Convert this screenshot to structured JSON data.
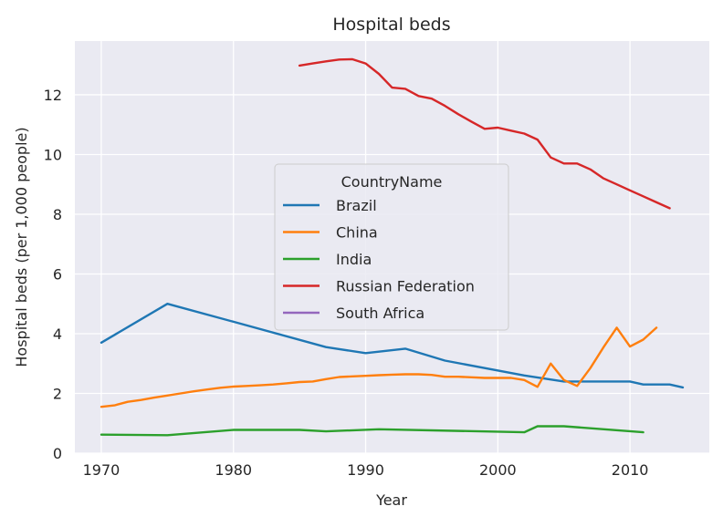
{
  "chart_data": {
    "type": "line",
    "title": "Hospital beds",
    "xlabel": "Year",
    "ylabel": "Hospital beds (per 1,000 people)",
    "xlim": [
      1968,
      2016
    ],
    "ylim": [
      0,
      13.8
    ],
    "xticks": [
      1970,
      1980,
      1990,
      2000,
      2010
    ],
    "yticks": [
      0,
      2,
      4,
      6,
      8,
      10,
      12
    ],
    "grid": true,
    "legend": {
      "title": "CountryName",
      "placement": "center"
    },
    "series": [
      {
        "name": "Brazil",
        "color": "#1f77b4",
        "x": [
          1970,
          1975,
          1980,
          1987,
          1990,
          1993,
          1996,
          2002,
          2005,
          2010,
          2011,
          2013,
          2014
        ],
        "y": [
          3.7,
          5.0,
          4.4,
          3.55,
          3.35,
          3.5,
          3.1,
          2.6,
          2.4,
          2.4,
          2.3,
          2.3,
          2.2
        ]
      },
      {
        "name": "China",
        "color": "#ff7f0e",
        "x": [
          1970,
          1971,
          1972,
          1973,
          1974,
          1975,
          1976,
          1977,
          1978,
          1979,
          1980,
          1981,
          1982,
          1983,
          1984,
          1985,
          1986,
          1987,
          1988,
          1989,
          1990,
          1991,
          1992,
          1993,
          1994,
          1995,
          1996,
          1997,
          1998,
          1999,
          2000,
          2001,
          2002,
          2003,
          2004,
          2005,
          2006,
          2007,
          2008,
          2009,
          2010,
          2011,
          2012
        ],
        "y": [
          1.55,
          1.6,
          1.72,
          1.78,
          1.86,
          1.93,
          2.0,
          2.07,
          2.13,
          2.19,
          2.23,
          2.25,
          2.27,
          2.3,
          2.34,
          2.38,
          2.4,
          2.48,
          2.55,
          2.57,
          2.59,
          2.61,
          2.63,
          2.64,
          2.64,
          2.62,
          2.56,
          2.56,
          2.54,
          2.52,
          2.52,
          2.52,
          2.45,
          2.22,
          3.0,
          2.45,
          2.25,
          2.85,
          3.55,
          4.2,
          3.57,
          3.8,
          4.2
        ]
      },
      {
        "name": "India",
        "color": "#2ca02c",
        "x": [
          1970,
          1975,
          1980,
          1985,
          1987,
          1991,
          2002,
          2003,
          2005,
          2011
        ],
        "y": [
          0.62,
          0.6,
          0.78,
          0.78,
          0.73,
          0.8,
          0.7,
          0.9,
          0.9,
          0.7
        ]
      },
      {
        "name": "Russian Federation",
        "color": "#d62728",
        "x": [
          1985,
          1986,
          1987,
          1988,
          1989,
          1990,
          1991,
          1992,
          1993,
          1994,
          1995,
          1996,
          1997,
          1998,
          1999,
          2000,
          2001,
          2002,
          2003,
          2004,
          2005,
          2006,
          2007,
          2008,
          2009,
          2010,
          2011,
          2012,
          2013
        ],
        "y": [
          12.98,
          13.05,
          13.12,
          13.18,
          13.19,
          13.05,
          12.7,
          12.24,
          12.2,
          11.96,
          11.87,
          11.63,
          11.35,
          11.1,
          10.86,
          10.9,
          10.8,
          10.7,
          10.5,
          9.9,
          9.7,
          9.7,
          9.5,
          9.2,
          9.0,
          8.8,
          8.6,
          8.4,
          8.2
        ]
      },
      {
        "name": "South Africa",
        "color": "#9467bd",
        "x": [],
        "y": []
      }
    ]
  }
}
